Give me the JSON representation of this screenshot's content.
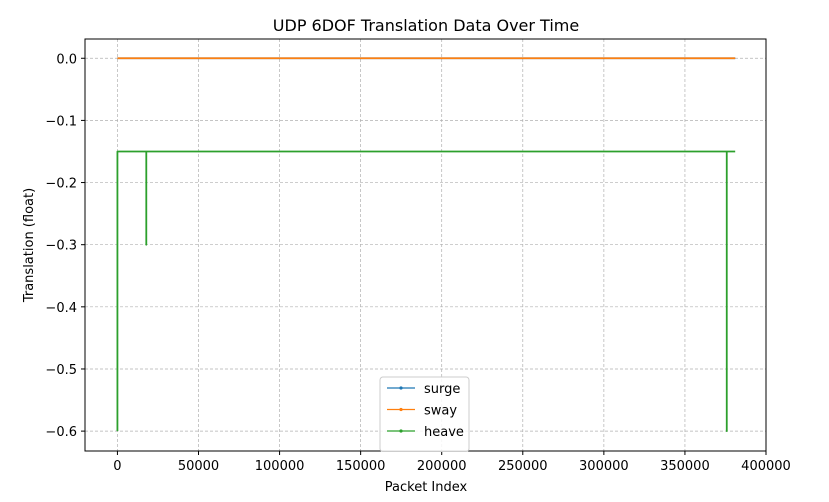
{
  "chart_data": {
    "type": "line",
    "title": "UDP 6DOF Translation Data Over Time",
    "xlabel": "Packet Index",
    "ylabel": "Translation (float)",
    "xlim": [
      -20000,
      400000
    ],
    "ylim": [
      -0.632,
      0.031
    ],
    "xticks": [
      0,
      50000,
      100000,
      150000,
      200000,
      250000,
      300000,
      350000,
      400000
    ],
    "xtick_labels": [
      "0",
      "50000",
      "100000",
      "150000",
      "200000",
      "250000",
      "300000",
      "350000",
      "400000"
    ],
    "yticks": [
      0.0,
      -0.1,
      -0.2,
      -0.3,
      -0.4,
      -0.5,
      -0.6
    ],
    "ytick_labels": [
      "0.0",
      "−0.1",
      "−0.2",
      "−0.3",
      "−0.4",
      "−0.5",
      "−0.6"
    ],
    "grid": true,
    "legend_position": "lower-center",
    "series": [
      {
        "name": "surge",
        "color": "#1f77b4",
        "x": [
          0,
          381000
        ],
        "y": [
          0.0,
          0.0
        ]
      },
      {
        "name": "sway",
        "color": "#ff7f0e",
        "x": [
          0,
          381000
        ],
        "y": [
          0.0,
          0.0
        ]
      },
      {
        "name": "heave",
        "color": "#2ca02c",
        "x": [
          0,
          0,
          17800,
          17800,
          17800,
          375800,
          375800,
          375800,
          381000
        ],
        "y": [
          -0.6,
          -0.15,
          -0.15,
          -0.3,
          -0.15,
          -0.15,
          -0.6,
          -0.15,
          -0.15
        ]
      }
    ]
  }
}
